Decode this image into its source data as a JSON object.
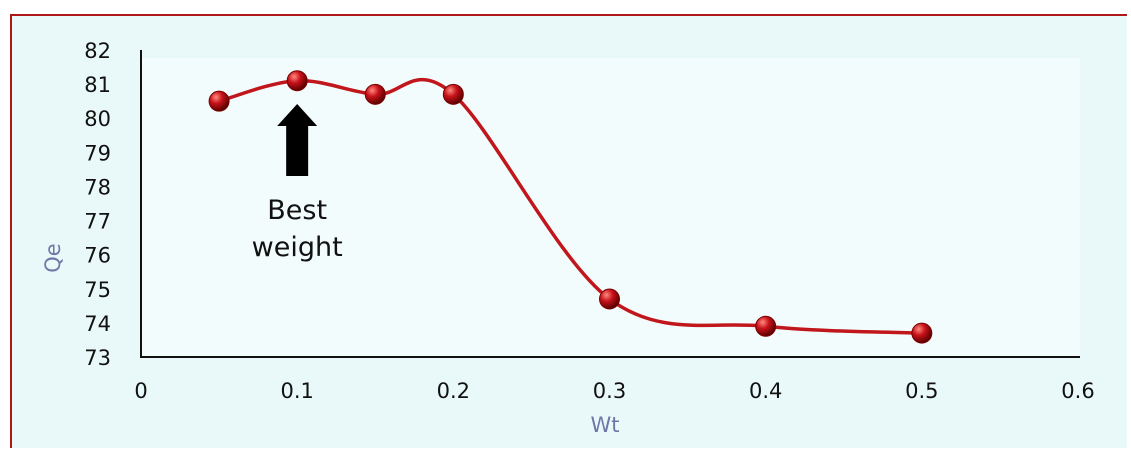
{
  "chart_data": {
    "type": "scatter",
    "title": "",
    "xlabel": "Wt",
    "ylabel": "Qe",
    "xlim": [
      0,
      0.6
    ],
    "ylim": [
      73,
      82
    ],
    "x_ticks": [
      0,
      0.1,
      0.2,
      0.3,
      0.4,
      0.5,
      0.6
    ],
    "x_tick_labels": [
      "0",
      "0.1",
      "0.2",
      "0.3",
      "0.4",
      "0.5",
      "0.6"
    ],
    "y_ticks": [
      73,
      74,
      75,
      76,
      77,
      78,
      79,
      80,
      81,
      82
    ],
    "y_tick_labels": [
      "73",
      "74",
      "75",
      "76",
      "77",
      "78",
      "79",
      "80",
      "81",
      "82"
    ],
    "series": [
      {
        "x": [
          0.05,
          0.1,
          0.15,
          0.2,
          0.3,
          0.4,
          0.5
        ],
        "y": [
          80.5,
          81.1,
          80.7,
          80.7,
          74.7,
          73.9,
          73.7
        ],
        "color": "#c0161c",
        "line": "smooth",
        "markers": "sphere"
      }
    ],
    "annotation": {
      "text_line1": "Best",
      "text_line2": "weight",
      "points_to_x": 0.1
    },
    "grid": false,
    "legend": "none"
  },
  "colors": {
    "plot_background": "#e9f9f9",
    "border": "#b01818",
    "series": "#c0161c",
    "axis_title": "#6f77a8"
  }
}
